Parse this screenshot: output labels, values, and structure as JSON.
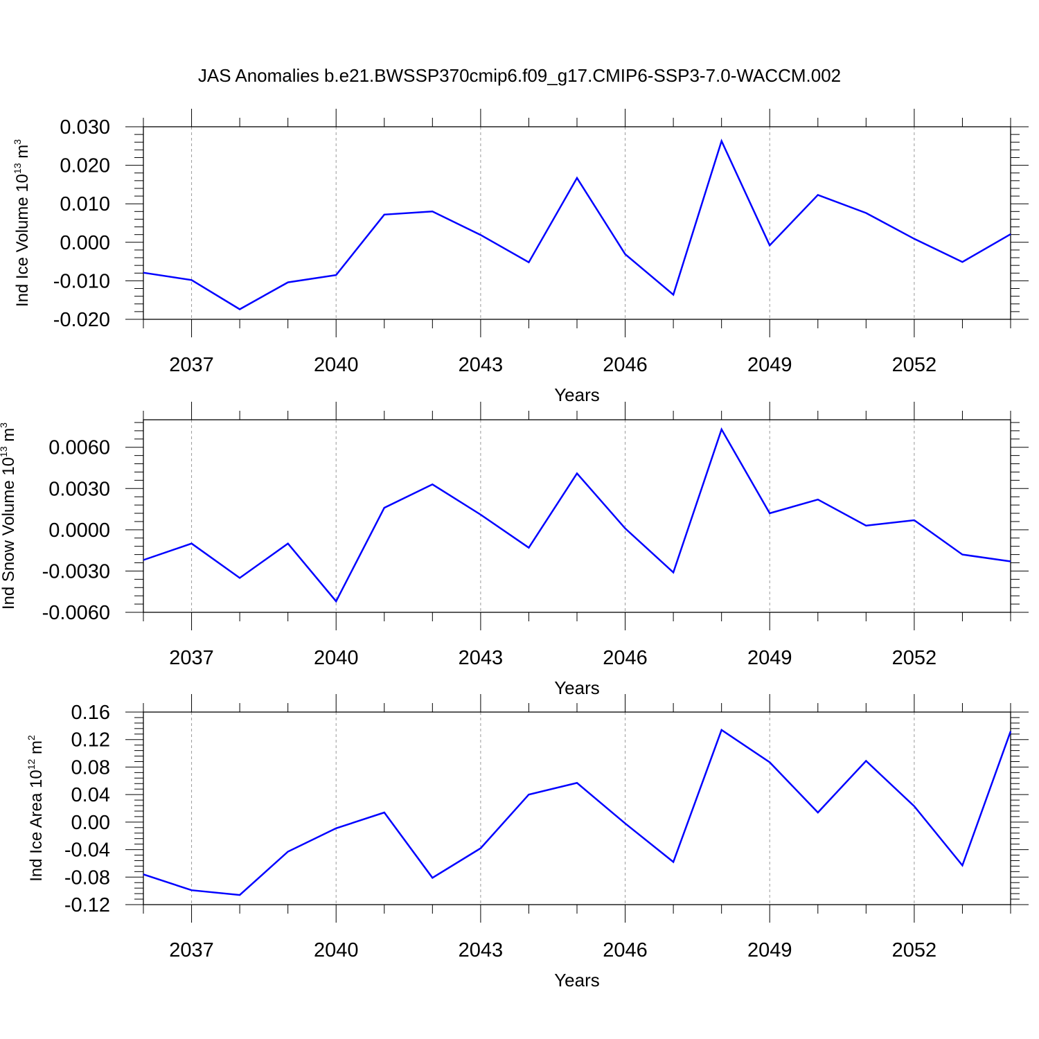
{
  "title": "JAS Anomalies b.e21.BWSSP370cmip6.f09_g17.CMIP6-SSP3-7.0-WACCM.002",
  "chart_data": [
    {
      "type": "line",
      "title": "",
      "xlabel": "Years",
      "ylabel": {
        "main": "Ind Ice Volume 10",
        "exp": "13",
        "unit": " m",
        "unit_exp": "3"
      },
      "xlim": [
        2036,
        2054
      ],
      "ylim": [
        -0.02,
        0.03
      ],
      "yticks": [
        "-0.020",
        "-0.010",
        "0.000",
        "0.010",
        "0.020",
        "0.030"
      ],
      "xticks": [
        "2037",
        "2040",
        "2043",
        "2046",
        "2049",
        "2052"
      ],
      "grid": "vertical dashed at labeled years",
      "color": "#0000ff",
      "x": [
        2036,
        2037,
        2038,
        2039,
        2040,
        2041,
        2042,
        2043,
        2044,
        2045,
        2046,
        2047,
        2048,
        2049,
        2050,
        2051,
        2052,
        2053,
        2054
      ],
      "values": [
        -0.0079,
        -0.0098,
        -0.0174,
        -0.0104,
        -0.0085,
        0.0072,
        0.008,
        0.0019,
        -0.0052,
        0.0167,
        -0.0031,
        -0.0136,
        0.0263,
        -0.0008,
        0.0123,
        0.0076,
        0.0009,
        -0.0051,
        0.0021
      ]
    },
    {
      "type": "line",
      "title": "",
      "xlabel": "Years",
      "ylabel": {
        "main": "Ind Snow Volume 10",
        "exp": "13",
        "unit": " m",
        "unit_exp": "3"
      },
      "xlim": [
        2036,
        2054
      ],
      "ylim": [
        -0.006,
        0.008
      ],
      "yticks": [
        "-0.0060",
        "-0.0030",
        "0.0000",
        "0.0030",
        "0.0060"
      ],
      "xticks": [
        "2037",
        "2040",
        "2043",
        "2046",
        "2049",
        "2052"
      ],
      "grid": "vertical dashed at labeled years",
      "color": "#0000ff",
      "x": [
        2036,
        2037,
        2038,
        2039,
        2040,
        2041,
        2042,
        2043,
        2044,
        2045,
        2046,
        2047,
        2048,
        2049,
        2050,
        2051,
        2052,
        2053,
        2054
      ],
      "values": [
        -0.0022,
        -0.001,
        -0.0035,
        -0.001,
        -0.0052,
        0.0016,
        0.0033,
        0.0011,
        -0.0013,
        0.0041,
        0.0001,
        -0.0031,
        0.0073,
        0.0012,
        0.0022,
        0.0003,
        0.0007,
        -0.0018,
        -0.0023
      ]
    },
    {
      "type": "line",
      "title": "",
      "xlabel": "Years",
      "ylabel": {
        "main": "Ind Ice Area 10",
        "exp": "12",
        "unit": " m",
        "unit_exp": "2"
      },
      "xlim": [
        2036,
        2054
      ],
      "ylim": [
        -0.12,
        0.16
      ],
      "yticks": [
        "-0.12",
        "-0.08",
        "-0.04",
        "0.00",
        "0.04",
        "0.08",
        "0.12",
        "0.16"
      ],
      "xticks": [
        "2037",
        "2040",
        "2043",
        "2046",
        "2049",
        "2052"
      ],
      "grid": "vertical dashed at labeled years",
      "color": "#0000ff",
      "x": [
        2036,
        2037,
        2038,
        2039,
        2040,
        2041,
        2042,
        2043,
        2044,
        2045,
        2046,
        2047,
        2048,
        2049,
        2050,
        2051,
        2052,
        2053,
        2054
      ],
      "values": [
        -0.076,
        -0.099,
        -0.106,
        -0.043,
        -0.009,
        0.014,
        -0.081,
        -0.038,
        0.04,
        0.057,
        -0.002,
        -0.058,
        0.134,
        0.087,
        0.014,
        0.089,
        0.023,
        -0.063,
        0.132
      ]
    }
  ]
}
